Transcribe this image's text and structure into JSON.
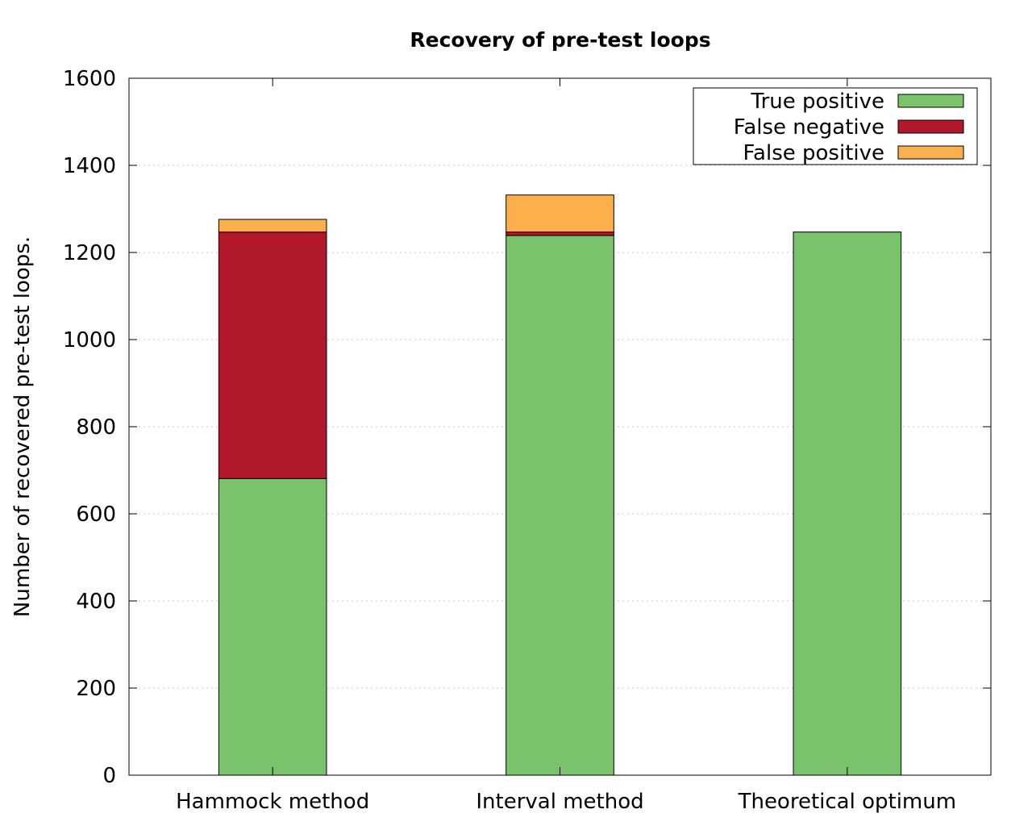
{
  "chart_data": {
    "type": "bar",
    "stacked": true,
    "title": "Recovery of pre-test loops",
    "xlabel": "",
    "ylabel": "Number of recovered pre-test loops.",
    "categories": [
      "Hammock method",
      "Interval method",
      "Theoretical optimum"
    ],
    "series": [
      {
        "name": "True positive",
        "color": "#7bc26d",
        "values": [
          681,
          1239,
          1247
        ]
      },
      {
        "name": "False negative",
        "color": "#b2182b",
        "values": [
          566,
          8,
          0
        ]
      },
      {
        "name": "False positive",
        "color": "#fbb04b",
        "values": [
          29,
          85,
          0
        ]
      }
    ],
    "ylim": [
      0,
      1600
    ],
    "yticks": [
      0,
      200,
      400,
      600,
      800,
      1000,
      1200,
      1400,
      1600
    ],
    "grid": true,
    "legend_position": "top-right"
  }
}
